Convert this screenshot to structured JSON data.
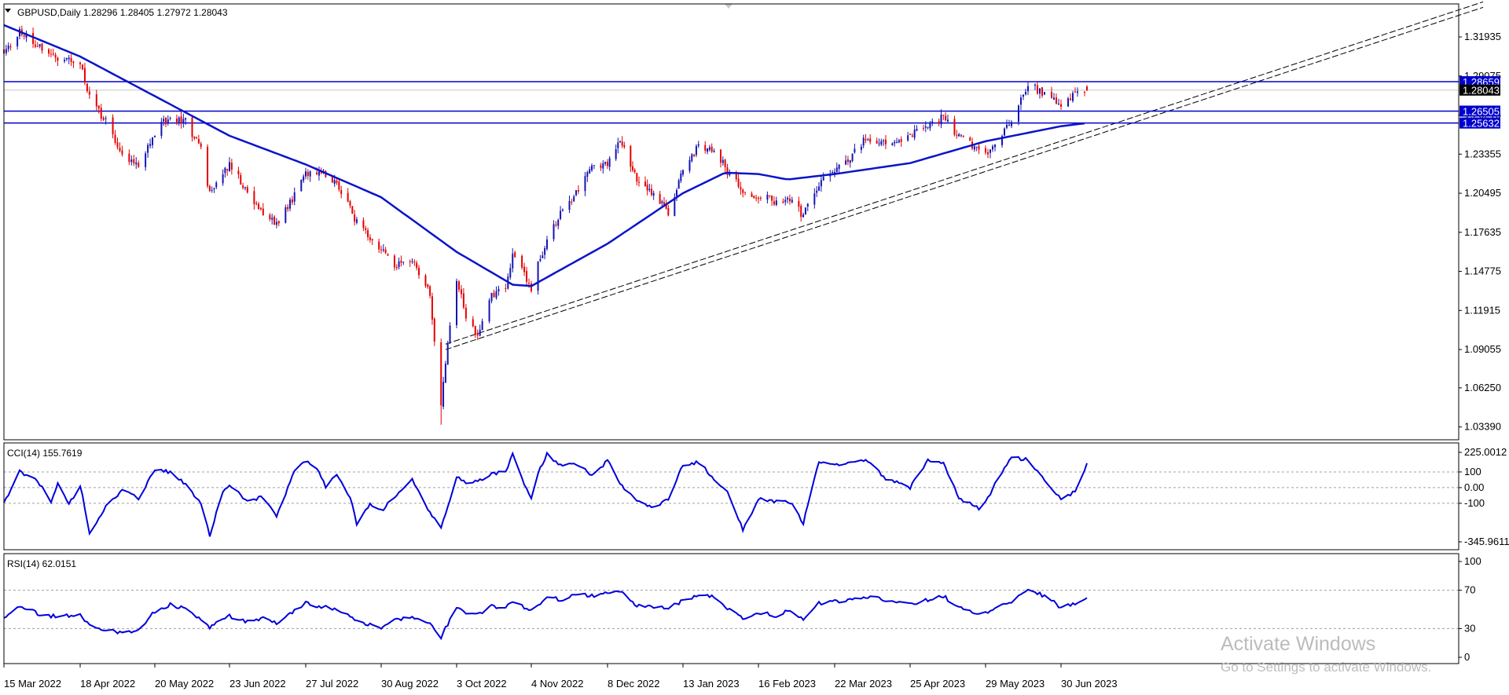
{
  "chart_data": [
    {
      "type": "candlestick",
      "header": "GBPUSD,Daily  1.28296 1.28405 1.27972 1.28043",
      "symbol": "GBPUSD",
      "timeframe": "Daily",
      "ohlc_last": {
        "open": 1.28296,
        "high": 1.28405,
        "low": 1.27972,
        "close": 1.28043
      },
      "ylim": [
        1.0245,
        1.3435
      ],
      "y_ticks": [
        "1.31935",
        "1.29075",
        "1.26215",
        "1.23355",
        "1.20495",
        "1.17635",
        "1.14775",
        "1.11915",
        "1.09055",
        "1.06250",
        "1.03390"
      ],
      "x_ticks": [
        "15 Mar 2022",
        "18 Apr 2022",
        "20 May 2022",
        "23 Jun 2022",
        "27 Jul 2022",
        "30 Aug 2022",
        "3 Oct 2022",
        "4 Nov 2022",
        "8 Dec 2022",
        "13 Jan 2023",
        "16 Feb 2023",
        "22 Mar 2023",
        "25 Apr 2023",
        "29 May 2023",
        "30 Jun 2023"
      ],
      "price_path_anchors": [
        [
          "15 Mar 2022",
          1.306
        ],
        [
          "22 Mar 2022",
          1.323
        ],
        [
          "30 Mar 2022",
          1.314
        ],
        [
          "8 Apr 2022",
          1.304
        ],
        [
          "18 Apr 2022",
          1.301
        ],
        [
          "22 Apr 2022",
          1.275
        ],
        [
          "29 Apr 2022",
          1.257
        ],
        [
          "6 May 2022",
          1.235
        ],
        [
          "13 May 2022",
          1.224
        ],
        [
          "20 May 2022",
          1.249
        ],
        [
          "27 May 2022",
          1.262
        ],
        [
          "3 Jun 2022",
          1.257
        ],
        [
          "10 Jun 2022",
          1.237
        ],
        [
          "14 Jun 2022",
          1.205
        ],
        [
          "23 Jun 2022",
          1.226
        ],
        [
          "1 Jul 2022",
          1.206
        ],
        [
          "8 Jul 2022",
          1.191
        ],
        [
          "14 Jul 2022",
          1.182
        ],
        [
          "22 Jul 2022",
          1.203
        ],
        [
          "27 Jul 2022",
          1.219
        ],
        [
          "2 Aug 2022",
          1.222
        ],
        [
          "10 Aug 2022",
          1.213
        ],
        [
          "19 Aug 2022",
          1.183
        ],
        [
          "30 Aug 2022",
          1.164
        ],
        [
          "5 Sep 2022",
          1.152
        ],
        [
          "13 Sep 2022",
          1.158
        ],
        [
          "21 Sep 2022",
          1.131
        ],
        [
          "26 Sep 2022",
          1.048
        ],
        [
          "28 Sep 2022",
          1.083
        ],
        [
          "3 Oct 2022",
          1.143
        ],
        [
          "7 Oct 2022",
          1.116
        ],
        [
          "12 Oct 2022",
          1.101
        ],
        [
          "18 Oct 2022",
          1.131
        ],
        [
          "24 Oct 2022",
          1.134
        ],
        [
          "27 Oct 2022",
          1.16
        ],
        [
          "4 Nov 2022",
          1.135
        ],
        [
          "7 Nov 2022",
          1.152
        ],
        [
          "11 Nov 2022",
          1.172
        ],
        [
          "17 Nov 2022",
          1.191
        ],
        [
          "24 Nov 2022",
          1.205
        ],
        [
          "1 Dec 2022",
          1.223
        ],
        [
          "8 Dec 2022",
          1.226
        ],
        [
          "14 Dec 2022",
          1.243
        ],
        [
          "21 Dec 2022",
          1.218
        ],
        [
          "29 Dec 2022",
          1.205
        ],
        [
          "6 Jan 2023",
          1.191
        ],
        [
          "13 Jan 2023",
          1.222
        ],
        [
          "20 Jan 2023",
          1.239
        ],
        [
          "27 Jan 2023",
          1.238
        ],
        [
          "3 Feb 2023",
          1.218
        ],
        [
          "9 Feb 2023",
          1.207
        ],
        [
          "16 Feb 2023",
          1.203
        ],
        [
          "24 Feb 2023",
          1.199
        ],
        [
          "2 Mar 2023",
          1.201
        ],
        [
          "8 Mar 2023",
          1.188
        ],
        [
          "15 Mar 2023",
          1.212
        ],
        [
          "22 Mar 2023",
          1.222
        ],
        [
          "29 Mar 2023",
          1.232
        ],
        [
          "5 Apr 2023",
          1.245
        ],
        [
          "14 Apr 2023",
          1.241
        ],
        [
          "25 Apr 2023",
          1.248
        ],
        [
          "3 May 2023",
          1.252
        ],
        [
          "10 May 2023",
          1.262
        ],
        [
          "17 May 2023",
          1.246
        ],
        [
          "26 May 2023",
          1.237
        ],
        [
          "29 May 2023",
          1.234
        ],
        [
          "2 Jun 2023",
          1.242
        ],
        [
          "9 Jun 2023",
          1.258
        ],
        [
          "16 Jun 2023",
          1.284
        ],
        [
          "23 Jun 2023",
          1.278
        ],
        [
          "30 Jun 2023",
          1.269
        ],
        [
          "6 Jul 2023",
          1.279
        ],
        [
          "11 Jul 2023",
          1.2804
        ]
      ],
      "moving_average_anchors": [
        [
          "15 Mar 2022",
          1.328
        ],
        [
          "18 Apr 2022",
          1.305
        ],
        [
          "20 May 2022",
          1.276
        ],
        [
          "23 Jun 2022",
          1.247
        ],
        [
          "27 Jul 2022",
          1.226
        ],
        [
          "30 Aug 2022",
          1.202
        ],
        [
          "3 Oct 2022",
          1.162
        ],
        [
          "27 Oct 2022",
          1.138
        ],
        [
          "4 Nov 2022",
          1.137
        ],
        [
          "8 Dec 2022",
          1.168
        ],
        [
          "13 Jan 2023",
          1.205
        ],
        [
          "1 Feb 2023",
          1.22
        ],
        [
          "16 Feb 2023",
          1.219
        ],
        [
          "1 Mar 2023",
          1.215
        ],
        [
          "22 Mar 2023",
          1.219
        ],
        [
          "25 Apr 2023",
          1.227
        ],
        [
          "29 May 2023",
          1.243
        ],
        [
          "30 Jun 2023",
          1.254
        ],
        [
          "11 Jul 2023",
          1.2563
        ]
      ],
      "horizontal_levels": [
        {
          "value": 1.28659,
          "label": "1.28659",
          "style": "solid"
        },
        {
          "value": 1.26505,
          "label": "1.26505",
          "style": "solid"
        },
        {
          "value": 1.25632,
          "label": "1.25632",
          "style": "solid"
        },
        {
          "value": 1.28043,
          "label": "1.28043",
          "style": "bid"
        }
      ],
      "trend_channel": [
        {
          "from": [
            "28 Sep 2022",
            1.0945
          ],
          "to": [
            "26 Dec 2023",
            1.345
          ]
        },
        {
          "from": [
            "28 Sep 2022",
            1.0905
          ],
          "to": [
            "26 Dec 2023",
            1.341
          ]
        }
      ],
      "colors": {
        "bull": "#1414b4",
        "bear": "#e60000",
        "level": "#0000cd",
        "ma": "#0a14c8",
        "label_bg": "#0000cd",
        "label_fg": "#ffffff",
        "bid_bg": "#000000"
      }
    },
    {
      "type": "line",
      "title": "CCI(14) 155.7619",
      "series": [
        {
          "name": "CCI(14)",
          "value": 155.7619
        }
      ],
      "y_ticks": [
        "225.0012",
        "100",
        "0.00",
        "-100",
        "-345.9611"
      ],
      "ylim": [
        -345.9611,
        225.0012
      ],
      "levels": [
        100,
        0,
        -100
      ],
      "path_anchors": [
        [
          "15 Mar 2022",
          -100
        ],
        [
          "22 Mar 2022",
          100
        ],
        [
          "30 Mar 2022",
          40
        ],
        [
          "5 Apr 2022",
          -90
        ],
        [
          "8 Apr 2022",
          30
        ],
        [
          "13 Apr 2022",
          -110
        ],
        [
          "18 Apr 2022",
          20
        ],
        [
          "22 Apr 2022",
          -290
        ],
        [
          "29 Apr 2022",
          -120
        ],
        [
          "6 May 2022",
          -20
        ],
        [
          "13 May 2022",
          -70
        ],
        [
          "20 May 2022",
          120
        ],
        [
          "27 May 2022",
          100
        ],
        [
          "3 Jun 2022",
          20
        ],
        [
          "10 Jun 2022",
          -100
        ],
        [
          "14 Jun 2022",
          -310
        ],
        [
          "20 Jun 2022",
          -20
        ],
        [
          "23 Jun 2022",
          20
        ],
        [
          "1 Jul 2022",
          -90
        ],
        [
          "8 Jul 2022",
          -60
        ],
        [
          "14 Jul 2022",
          -180
        ],
        [
          "22 Jul 2022",
          100
        ],
        [
          "27 Jul 2022",
          170
        ],
        [
          "2 Aug 2022",
          100
        ],
        [
          "5 Aug 2022",
          10
        ],
        [
          "10 Aug 2022",
          80
        ],
        [
          "16 Aug 2022",
          -60
        ],
        [
          "19 Aug 2022",
          -230
        ],
        [
          "25 Aug 2022",
          -100
        ],
        [
          "30 Aug 2022",
          -150
        ],
        [
          "5 Sep 2022",
          -60
        ],
        [
          "13 Sep 2022",
          50
        ],
        [
          "21 Sep 2022",
          -160
        ],
        [
          "26 Sep 2022",
          -260
        ],
        [
          "3 Oct 2022",
          70
        ],
        [
          "7 Oct 2022",
          30
        ],
        [
          "12 Oct 2022",
          40
        ],
        [
          "18 Oct 2022",
          90
        ],
        [
          "24 Oct 2022",
          100
        ],
        [
          "27 Oct 2022",
          210
        ],
        [
          "4 Nov 2022",
          -80
        ],
        [
          "7 Nov 2022",
          100
        ],
        [
          "11 Nov 2022",
          210
        ],
        [
          "17 Nov 2022",
          140
        ],
        [
          "24 Nov 2022",
          150
        ],
        [
          "1 Dec 2022",
          80
        ],
        [
          "8 Dec 2022",
          170
        ],
        [
          "14 Dec 2022",
          30
        ],
        [
          "21 Dec 2022",
          -80
        ],
        [
          "29 Dec 2022",
          -130
        ],
        [
          "6 Jan 2023",
          -70
        ],
        [
          "13 Jan 2023",
          150
        ],
        [
          "20 Jan 2023",
          160
        ],
        [
          "27 Jan 2023",
          60
        ],
        [
          "3 Feb 2023",
          -50
        ],
        [
          "9 Feb 2023",
          -270
        ],
        [
          "16 Feb 2023",
          -70
        ],
        [
          "24 Feb 2023",
          -90
        ],
        [
          "2 Mar 2023",
          -90
        ],
        [
          "8 Mar 2023",
          -230
        ],
        [
          "15 Mar 2023",
          170
        ],
        [
          "22 Mar 2023",
          150
        ],
        [
          "29 Mar 2023",
          160
        ],
        [
          "5 Apr 2023",
          180
        ],
        [
          "14 Apr 2023",
          60
        ],
        [
          "25 Apr 2023",
          0
        ],
        [
          "3 May 2023",
          180
        ],
        [
          "10 May 2023",
          160
        ],
        [
          "17 May 2023",
          -70
        ],
        [
          "26 May 2023",
          -130
        ],
        [
          "29 May 2023",
          -90
        ],
        [
          "2 Jun 2023",
          20
        ],
        [
          "9 Jun 2023",
          190
        ],
        [
          "16 Jun 2023",
          180
        ],
        [
          "23 Jun 2023",
          50
        ],
        [
          "30 Jun 2023",
          -80
        ],
        [
          "6 Jul 2023",
          -20
        ],
        [
          "11 Jul 2023",
          155.7619
        ]
      ],
      "colors": {
        "line": "#0000dc",
        "level": "#a0a0a0"
      }
    },
    {
      "type": "line",
      "title": "RSI(14) 62.0151",
      "series": [
        {
          "name": "RSI(14)",
          "value": 62.0151
        }
      ],
      "y_ticks": [
        "100",
        "70",
        "30",
        "0"
      ],
      "ylim": [
        0,
        100
      ],
      "levels": [
        70,
        30
      ],
      "path_anchors": [
        [
          "15 Mar 2022",
          40
        ],
        [
          "22 Mar 2022",
          53
        ],
        [
          "30 Mar 2022",
          46
        ],
        [
          "8 Apr 2022",
          42
        ],
        [
          "18 Apr 2022",
          45
        ],
        [
          "22 Apr 2022",
          34
        ],
        [
          "29 Apr 2022",
          29
        ],
        [
          "6 May 2022",
          26
        ],
        [
          "13 May 2022",
          28
        ],
        [
          "20 May 2022",
          48
        ],
        [
          "27 May 2022",
          55
        ],
        [
          "3 Jun 2022",
          50
        ],
        [
          "10 Jun 2022",
          40
        ],
        [
          "14 Jun 2022",
          31
        ],
        [
          "23 Jun 2022",
          43
        ],
        [
          "1 Jul 2022",
          37
        ],
        [
          "8 Jul 2022",
          41
        ],
        [
          "14 Jul 2022",
          36
        ],
        [
          "22 Jul 2022",
          48
        ],
        [
          "27 Jul 2022",
          58
        ],
        [
          "2 Aug 2022",
          53
        ],
        [
          "10 Aug 2022",
          51
        ],
        [
          "19 Aug 2022",
          38
        ],
        [
          "30 Aug 2022",
          30
        ],
        [
          "5 Sep 2022",
          38
        ],
        [
          "13 Sep 2022",
          43
        ],
        [
          "21 Sep 2022",
          36
        ],
        [
          "26 Sep 2022",
          21
        ],
        [
          "3 Oct 2022",
          53
        ],
        [
          "7 Oct 2022",
          46
        ],
        [
          "12 Oct 2022",
          44
        ],
        [
          "18 Oct 2022",
          53
        ],
        [
          "24 Oct 2022",
          53
        ],
        [
          "27 Oct 2022",
          58
        ],
        [
          "4 Nov 2022",
          49
        ],
        [
          "7 Nov 2022",
          55
        ],
        [
          "11 Nov 2022",
          63
        ],
        [
          "17 Nov 2022",
          60
        ],
        [
          "24 Nov 2022",
          66
        ],
        [
          "1 Dec 2022",
          64
        ],
        [
          "8 Dec 2022",
          67
        ],
        [
          "14 Dec 2022",
          69
        ],
        [
          "21 Dec 2022",
          54
        ],
        [
          "29 Dec 2022",
          52
        ],
        [
          "6 Jan 2023",
          51
        ],
        [
          "13 Jan 2023",
          59
        ],
        [
          "20 Jan 2023",
          64
        ],
        [
          "27 Jan 2023",
          63
        ],
        [
          "3 Feb 2023",
          49
        ],
        [
          "9 Feb 2023",
          41
        ],
        [
          "16 Feb 2023",
          47
        ],
        [
          "24 Feb 2023",
          43
        ],
        [
          "2 Mar 2023",
          49
        ],
        [
          "8 Mar 2023",
          40
        ],
        [
          "15 Mar 2023",
          56
        ],
        [
          "22 Mar 2023",
          58
        ],
        [
          "29 Mar 2023",
          60
        ],
        [
          "5 Apr 2023",
          63
        ],
        [
          "14 Apr 2023",
          60
        ],
        [
          "25 Apr 2023",
          56
        ],
        [
          "3 May 2023",
          60
        ],
        [
          "10 May 2023",
          64
        ],
        [
          "17 May 2023",
          52
        ],
        [
          "26 May 2023",
          45
        ],
        [
          "29 May 2023",
          47
        ],
        [
          "2 Jun 2023",
          50
        ],
        [
          "9 Jun 2023",
          58
        ],
        [
          "16 Jun 2023",
          70
        ],
        [
          "23 Jun 2023",
          64
        ],
        [
          "30 Jun 2023",
          52
        ],
        [
          "6 Jul 2023",
          56
        ],
        [
          "11 Jul 2023",
          62.0151
        ]
      ],
      "colors": {
        "line": "#0000dc",
        "level": "#a0a0a0"
      }
    }
  ],
  "watermark": {
    "title": "Activate Windows",
    "subtitle": "Go to Settings to activate Windows."
  }
}
